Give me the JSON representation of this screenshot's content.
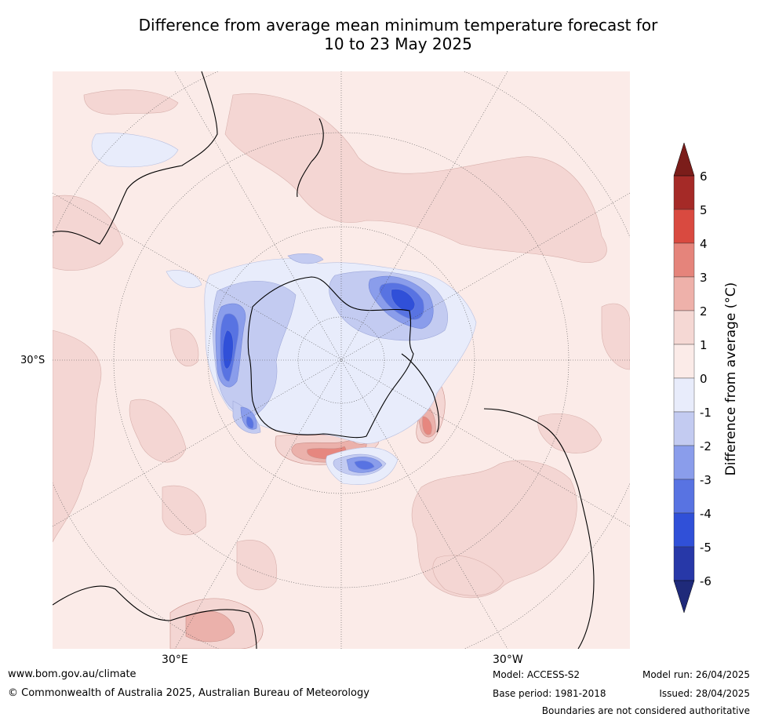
{
  "title_line1": "Difference from average mean minimum temperature forecast for",
  "title_line2": "10 to 23 May 2025",
  "map": {
    "lat_label": "30°S",
    "lon_labels": [
      "30°E",
      "30°W"
    ],
    "colors": {
      "ocean_pos1": "#fbebe8",
      "pos2": "#f4d6d3",
      "pos3": "#ebb1ab",
      "pos4": "#e6877f",
      "pos5": "#d95147",
      "neg1": "#e8ecfb",
      "neg2": "#c3cbf1",
      "neg3": "#8a9deb",
      "neg4": "#5873e2",
      "neg5": "#3050d8"
    }
  },
  "colorbar": {
    "title": "Difference from average (°C)",
    "ticks": [
      "6",
      "5",
      "4",
      "3",
      "2",
      "1",
      "0",
      "-1",
      "-2",
      "-3",
      "-4",
      "-5",
      "-6"
    ],
    "colors": [
      "#a52a27",
      "#d94a40",
      "#e5847b",
      "#eeb1aa",
      "#f5d8d4",
      "#fbebe8",
      "#e8ecfb",
      "#c3cbf1",
      "#8a9deb",
      "#5873e2",
      "#3050d8",
      "#2738a8"
    ],
    "top_arrow_color": "#7b1d1a",
    "bottom_arrow_color": "#1f2a7a"
  },
  "footer": {
    "website": "www.bom.gov.au/climate",
    "copyright": "© Commonwealth of Australia 2025, Australian Bureau of Meteorology",
    "model": "Model: ACCESS-S2",
    "base_period": "Base period: 1981-2018",
    "model_run": "Model run: 26/04/2025",
    "issued": "Issued: 28/04/2025",
    "disclaimer": "Boundaries are not considered authoritative"
  }
}
